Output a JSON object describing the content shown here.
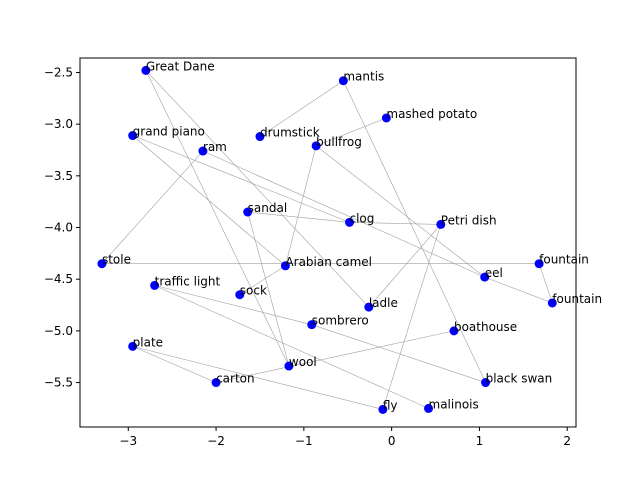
{
  "chart_data": {
    "type": "scatter",
    "title": "",
    "xlabel": "",
    "ylabel": "",
    "xlim": [
      -3.55,
      2.1
    ],
    "ylim": [
      -5.93,
      -2.36
    ],
    "xticks": [
      -3,
      -2,
      -1,
      0,
      1,
      2
    ],
    "yticks": [
      -2.5,
      -3.0,
      -3.5,
      -4.0,
      -4.5,
      -5.0,
      -5.5
    ],
    "xtick_labels": [
      "−3",
      "−2",
      "−1",
      "0",
      "1",
      "2"
    ],
    "ytick_labels": [
      "−2.5",
      "−3.0",
      "−3.5",
      "−4.0",
      "−4.5",
      "−5.0",
      "−5.5"
    ],
    "grid": false,
    "point_color": "#0000ff",
    "edge_color": "#a0a0a0",
    "points": [
      {
        "label": "Great Dane",
        "x": -2.8,
        "y": -2.48
      },
      {
        "label": "mantis",
        "x": -0.55,
        "y": -2.58
      },
      {
        "label": "mashed potato",
        "x": -0.06,
        "y": -2.94
      },
      {
        "label": "grand piano",
        "x": -2.95,
        "y": -3.11
      },
      {
        "label": "drumstick",
        "x": -1.5,
        "y": -3.12
      },
      {
        "label": "bullfrog",
        "x": -0.86,
        "y": -3.21
      },
      {
        "label": "ram",
        "x": -2.15,
        "y": -3.26
      },
      {
        "label": "sandal",
        "x": -1.64,
        "y": -3.85
      },
      {
        "label": "clog",
        "x": -0.48,
        "y": -3.95
      },
      {
        "label": "Petri dish",
        "x": 0.56,
        "y": -3.97
      },
      {
        "label": "stole",
        "x": -3.3,
        "y": -4.35
      },
      {
        "label": "fountain",
        "x": 1.68,
        "y": -4.35
      },
      {
        "label": "Arabian camel",
        "x": -1.21,
        "y": -4.37
      },
      {
        "label": "eel",
        "x": 1.06,
        "y": -4.48
      },
      {
        "label": "traffic light",
        "x": -2.7,
        "y": -4.56
      },
      {
        "label": "sock",
        "x": -1.73,
        "y": -4.65
      },
      {
        "label": "fountain",
        "x": 1.83,
        "y": -4.73
      },
      {
        "label": "ladle",
        "x": -0.26,
        "y": -4.77
      },
      {
        "label": "sombrero",
        "x": -0.91,
        "y": -4.94
      },
      {
        "label": "boathouse",
        "x": 0.71,
        "y": -5.0
      },
      {
        "label": "plate",
        "x": -2.95,
        "y": -5.15
      },
      {
        "label": "wool",
        "x": -1.17,
        "y": -5.34
      },
      {
        "label": "carton",
        "x": -2.0,
        "y": -5.5
      },
      {
        "label": "black swan",
        "x": 1.07,
        "y": -5.5
      },
      {
        "label": "fly",
        "x": -0.1,
        "y": -5.76
      },
      {
        "label": "malinois",
        "x": 0.42,
        "y": -5.75
      }
    ],
    "edges": [
      [
        0,
        17
      ],
      [
        0,
        21
      ],
      [
        1,
        4
      ],
      [
        1,
        23
      ],
      [
        2,
        5
      ],
      [
        3,
        12
      ],
      [
        3,
        8
      ],
      [
        5,
        12
      ],
      [
        5,
        13
      ],
      [
        6,
        10
      ],
      [
        6,
        13
      ],
      [
        7,
        8
      ],
      [
        7,
        21
      ],
      [
        8,
        9
      ],
      [
        9,
        17
      ],
      [
        9,
        24
      ],
      [
        10,
        11
      ],
      [
        11,
        16
      ],
      [
        13,
        16
      ],
      [
        14,
        25
      ],
      [
        14,
        18
      ],
      [
        20,
        22
      ],
      [
        20,
        24
      ],
      [
        22,
        19
      ],
      [
        18,
        23
      ],
      [
        15,
        12
      ]
    ]
  }
}
